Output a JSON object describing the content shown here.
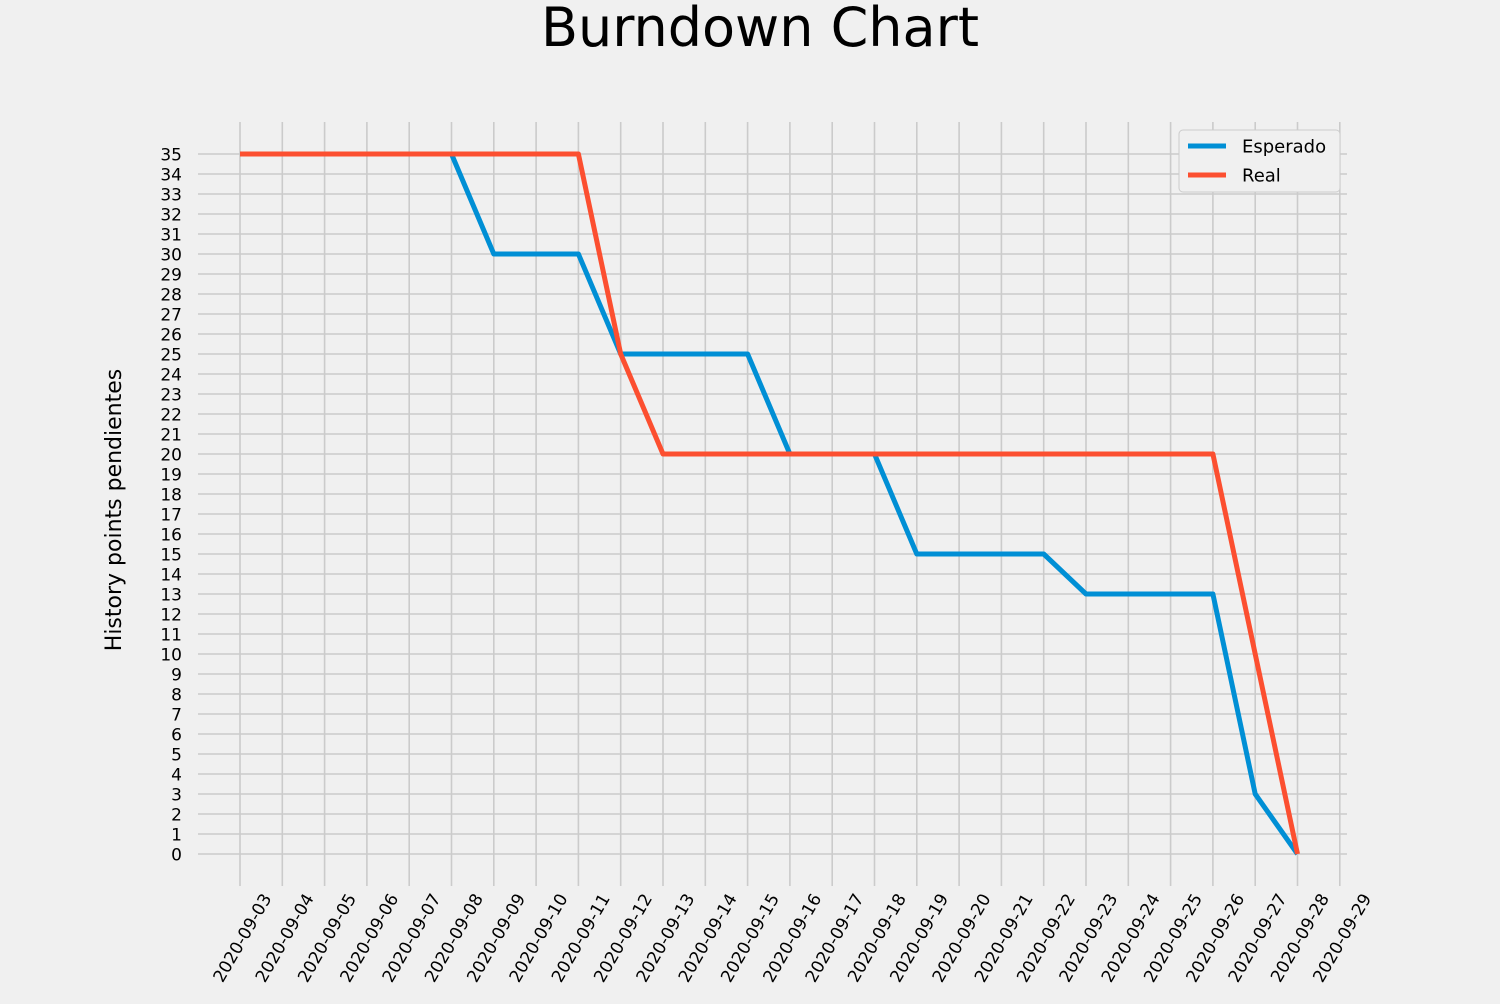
{
  "chart_data": {
    "type": "line",
    "title": "Burndown Chart",
    "xlabel": "",
    "ylabel": "History points pendientes",
    "x": [
      "2020-09-03",
      "2020-09-04",
      "2020-09-05",
      "2020-09-06",
      "2020-09-07",
      "2020-09-08",
      "2020-09-09",
      "2020-09-10",
      "2020-09-11",
      "2020-09-12",
      "2020-09-13",
      "2020-09-14",
      "2020-09-15",
      "2020-09-16",
      "2020-09-17",
      "2020-09-18",
      "2020-09-19",
      "2020-09-20",
      "2020-09-21",
      "2020-09-22",
      "2020-09-23",
      "2020-09-24",
      "2020-09-25",
      "2020-09-26",
      "2020-09-27",
      "2020-09-28"
    ],
    "x_ticks": [
      "2020-09-03",
      "2020-09-04",
      "2020-09-05",
      "2020-09-06",
      "2020-09-07",
      "2020-09-08",
      "2020-09-09",
      "2020-09-10",
      "2020-09-11",
      "2020-09-12",
      "2020-09-13",
      "2020-09-14",
      "2020-09-15",
      "2020-09-16",
      "2020-09-17",
      "2020-09-18",
      "2020-09-19",
      "2020-09-20",
      "2020-09-21",
      "2020-09-22",
      "2020-09-23",
      "2020-09-24",
      "2020-09-25",
      "2020-09-26",
      "2020-09-27",
      "2020-09-28",
      "2020-09-29"
    ],
    "y_ticks": [
      0,
      1,
      2,
      3,
      4,
      5,
      6,
      7,
      8,
      9,
      10,
      11,
      12,
      13,
      14,
      15,
      16,
      17,
      18,
      19,
      20,
      21,
      22,
      23,
      24,
      25,
      26,
      27,
      28,
      29,
      30,
      31,
      32,
      33,
      34,
      35
    ],
    "ylim": [
      -1.6,
      36.6
    ],
    "grid": true,
    "legend_position": "top-right",
    "series": [
      {
        "name": "Esperado",
        "color": "#008fd5",
        "values": [
          35,
          35,
          35,
          35,
          35,
          35,
          30,
          30,
          30,
          25,
          25,
          25,
          25,
          20,
          20,
          20,
          15,
          15,
          15,
          15,
          13,
          13,
          13,
          13,
          3,
          0
        ]
      },
      {
        "name": "Real",
        "color": "#fc4f30",
        "values": [
          35,
          35,
          35,
          35,
          35,
          35,
          35,
          35,
          35,
          25,
          20,
          20,
          20,
          20,
          20,
          20,
          20,
          20,
          20,
          20,
          20,
          20,
          20,
          20,
          10,
          0
        ]
      }
    ],
    "colors": {
      "background": "#f0f0f0",
      "grid": "#cbcbcb",
      "text": "#000000"
    }
  }
}
